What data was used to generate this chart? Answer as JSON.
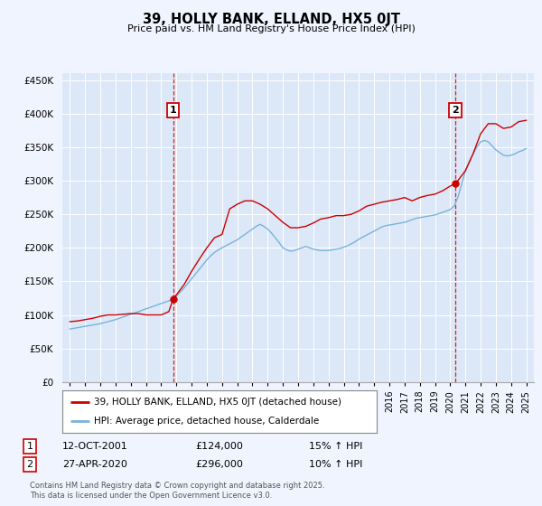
{
  "title": "39, HOLLY BANK, ELLAND, HX5 0JT",
  "subtitle": "Price paid vs. HM Land Registry's House Price Index (HPI)",
  "background_color": "#f0f4ff",
  "plot_bg_color": "#dce8f8",
  "legend_line1": "39, HOLLY BANK, ELLAND, HX5 0JT (detached house)",
  "legend_line2": "HPI: Average price, detached house, Calderdale",
  "red_color": "#cc0000",
  "blue_color": "#7ab3d8",
  "marker1_date": "12-OCT-2001",
  "marker1_price": "£124,000",
  "marker1_hpi": "15% ↑ HPI",
  "marker1_x": 2001.79,
  "marker1_y": 124000,
  "marker2_date": "27-APR-2020",
  "marker2_price": "£296,000",
  "marker2_hpi": "10% ↑ HPI",
  "marker2_x": 2020.33,
  "marker2_y": 296000,
  "vline1_x": 2001.79,
  "vline2_x": 2020.33,
  "xlim": [
    1994.5,
    2025.5
  ],
  "ylim": [
    0,
    460000
  ],
  "yticks": [
    0,
    50000,
    100000,
    150000,
    200000,
    250000,
    300000,
    350000,
    400000,
    450000
  ],
  "ytick_labels": [
    "£0",
    "£50K",
    "£100K",
    "£150K",
    "£200K",
    "£250K",
    "£300K",
    "£350K",
    "£400K",
    "£450K"
  ],
  "footer": "Contains HM Land Registry data © Crown copyright and database right 2025.\nThis data is licensed under the Open Government Licence v3.0.",
  "hpi_x": [
    1995.0,
    1995.25,
    1995.5,
    1995.75,
    1996.0,
    1996.25,
    1996.5,
    1996.75,
    1997.0,
    1997.25,
    1997.5,
    1997.75,
    1998.0,
    1998.25,
    1998.5,
    1998.75,
    1999.0,
    1999.25,
    1999.5,
    1999.75,
    2000.0,
    2000.25,
    2000.5,
    2000.75,
    2001.0,
    2001.25,
    2001.5,
    2001.75,
    2002.0,
    2002.25,
    2002.5,
    2002.75,
    2003.0,
    2003.25,
    2003.5,
    2003.75,
    2004.0,
    2004.25,
    2004.5,
    2004.75,
    2005.0,
    2005.25,
    2005.5,
    2005.75,
    2006.0,
    2006.25,
    2006.5,
    2006.75,
    2007.0,
    2007.25,
    2007.5,
    2007.75,
    2008.0,
    2008.25,
    2008.5,
    2008.75,
    2009.0,
    2009.25,
    2009.5,
    2009.75,
    2010.0,
    2010.25,
    2010.5,
    2010.75,
    2011.0,
    2011.25,
    2011.5,
    2011.75,
    2012.0,
    2012.25,
    2012.5,
    2012.75,
    2013.0,
    2013.25,
    2013.5,
    2013.75,
    2014.0,
    2014.25,
    2014.5,
    2014.75,
    2015.0,
    2015.25,
    2015.5,
    2015.75,
    2016.0,
    2016.25,
    2016.5,
    2016.75,
    2017.0,
    2017.25,
    2017.5,
    2017.75,
    2018.0,
    2018.25,
    2018.5,
    2018.75,
    2019.0,
    2019.25,
    2019.5,
    2019.75,
    2020.0,
    2020.25,
    2020.5,
    2020.75,
    2021.0,
    2021.25,
    2021.5,
    2021.75,
    2022.0,
    2022.25,
    2022.5,
    2022.75,
    2023.0,
    2023.25,
    2023.5,
    2023.75,
    2024.0,
    2024.25,
    2024.5,
    2024.75,
    2025.0
  ],
  "hpi_y": [
    79000,
    80000,
    81000,
    82000,
    83000,
    84000,
    85000,
    86000,
    87000,
    88500,
    90000,
    91500,
    93000,
    95000,
    97000,
    99000,
    101000,
    103000,
    105000,
    107000,
    109000,
    111000,
    113000,
    115000,
    117000,
    119000,
    121000,
    123000,
    128000,
    134000,
    140000,
    147000,
    154000,
    161000,
    168000,
    175000,
    182000,
    188000,
    193000,
    197000,
    200000,
    203000,
    206000,
    209000,
    212000,
    216000,
    220000,
    224000,
    228000,
    232000,
    235000,
    232000,
    228000,
    222000,
    215000,
    208000,
    200000,
    197000,
    195000,
    196000,
    198000,
    200000,
    202000,
    200000,
    198000,
    197000,
    196000,
    196000,
    196000,
    197000,
    198000,
    199000,
    201000,
    203000,
    206000,
    209000,
    213000,
    216000,
    219000,
    222000,
    225000,
    228000,
    231000,
    233000,
    234000,
    235000,
    236000,
    237000,
    238000,
    240000,
    242000,
    244000,
    245000,
    246000,
    247000,
    248000,
    249000,
    251000,
    253000,
    255000,
    257000,
    262000,
    275000,
    295000,
    315000,
    328000,
    340000,
    350000,
    358000,
    360000,
    358000,
    352000,
    346000,
    342000,
    338000,
    337000,
    338000,
    340000,
    343000,
    345000,
    348000
  ],
  "red_x": [
    1995.0,
    1995.5,
    1996.0,
    1996.5,
    1997.0,
    1997.5,
    1998.0,
    1998.5,
    1999.0,
    1999.5,
    2000.0,
    2000.5,
    2001.0,
    2001.5,
    2001.79,
    2002.0,
    2002.5,
    2003.0,
    2003.5,
    2004.0,
    2004.5,
    2005.0,
    2005.5,
    2006.0,
    2006.5,
    2007.0,
    2007.5,
    2008.0,
    2008.5,
    2009.0,
    2009.5,
    2010.0,
    2010.5,
    2011.0,
    2011.5,
    2012.0,
    2012.5,
    2013.0,
    2013.5,
    2014.0,
    2014.5,
    2015.0,
    2015.5,
    2016.0,
    2016.5,
    2017.0,
    2017.5,
    2018.0,
    2018.5,
    2019.0,
    2019.5,
    2020.0,
    2020.33,
    2020.5,
    2021.0,
    2021.5,
    2022.0,
    2022.5,
    2023.0,
    2023.5,
    2024.0,
    2024.5,
    2025.0
  ],
  "red_y": [
    90000,
    91000,
    93000,
    95000,
    98000,
    100000,
    100000,
    101000,
    102000,
    102000,
    100000,
    100000,
    100000,
    105000,
    124000,
    130000,
    145000,
    165000,
    183000,
    200000,
    215000,
    220000,
    258000,
    265000,
    270000,
    270000,
    265000,
    258000,
    248000,
    238000,
    230000,
    230000,
    232000,
    237000,
    243000,
    245000,
    248000,
    248000,
    250000,
    255000,
    262000,
    265000,
    268000,
    270000,
    272000,
    275000,
    270000,
    275000,
    278000,
    280000,
    285000,
    292000,
    296000,
    300000,
    315000,
    340000,
    370000,
    385000,
    385000,
    378000,
    380000,
    388000,
    390000
  ]
}
